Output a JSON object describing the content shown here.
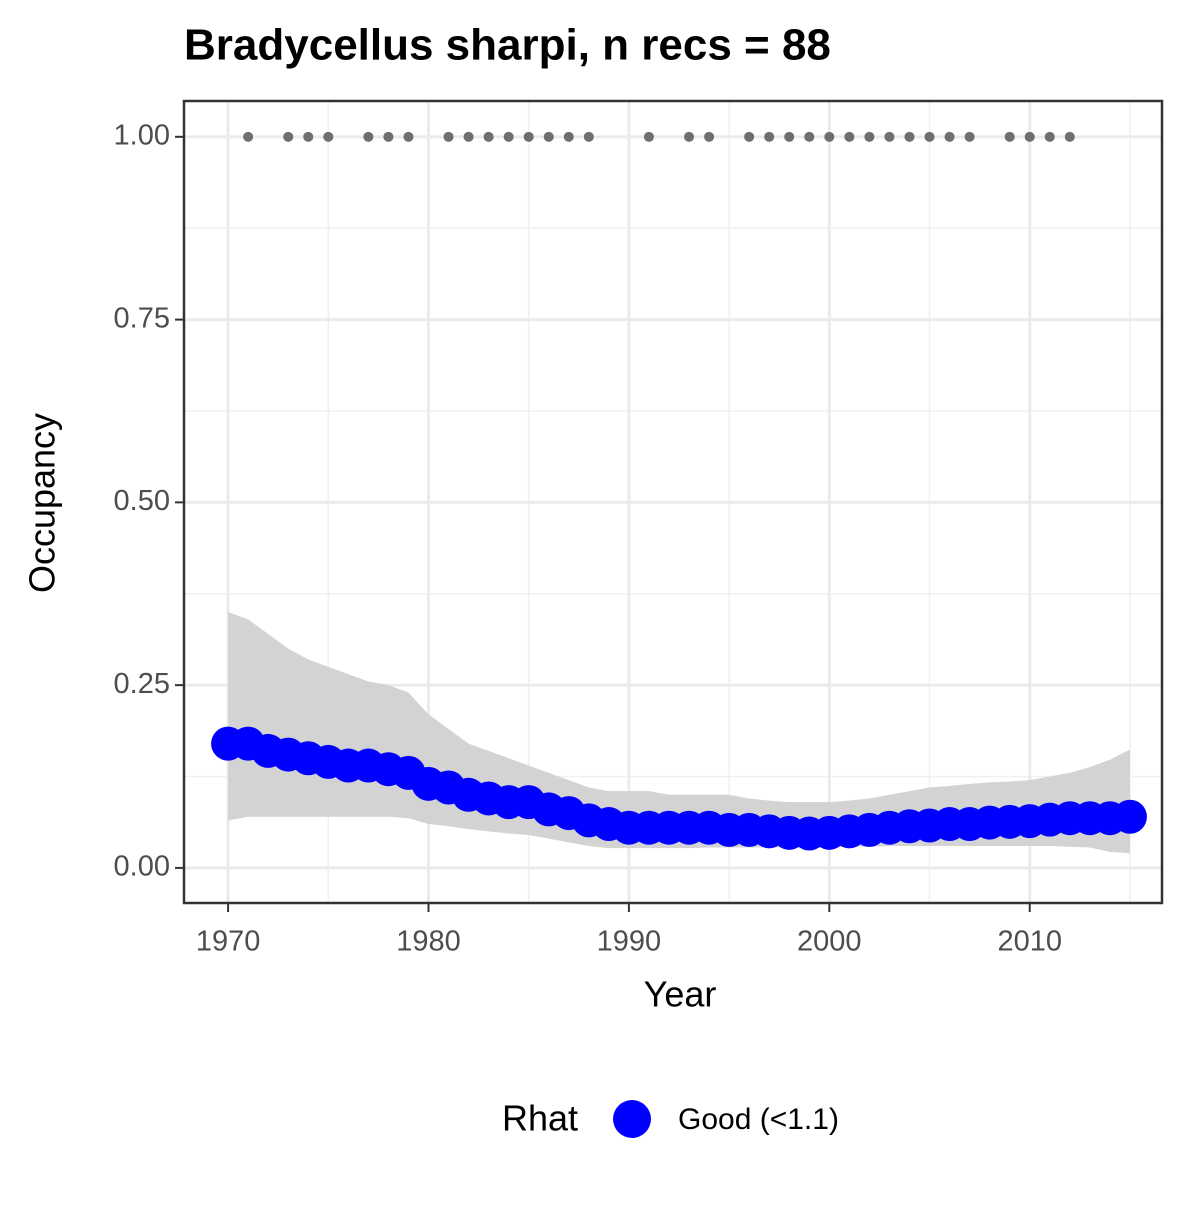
{
  "chart_data": {
    "type": "line",
    "title": "Bradycellus sharpi, n recs = 88",
    "x_label": "Year",
    "y_label": "Occupancy",
    "legend_title": "Rhat",
    "legend_position": "bottom",
    "x": [
      1970,
      1971,
      1972,
      1973,
      1974,
      1975,
      1976,
      1977,
      1978,
      1979,
      1980,
      1981,
      1982,
      1983,
      1984,
      1985,
      1986,
      1987,
      1988,
      1989,
      1990,
      1991,
      1992,
      1993,
      1994,
      1995,
      1996,
      1997,
      1998,
      1999,
      2000,
      2001,
      2002,
      2003,
      2004,
      2005,
      2006,
      2007,
      2008,
      2009,
      2010,
      2011,
      2012,
      2013,
      2014,
      2015
    ],
    "series": [
      {
        "name": "Good (<1.1)",
        "color": "#0000ff",
        "values": [
          0.17,
          0.17,
          0.16,
          0.155,
          0.15,
          0.145,
          0.14,
          0.14,
          0.135,
          0.13,
          0.115,
          0.11,
          0.1,
          0.095,
          0.09,
          0.09,
          0.08,
          0.075,
          0.065,
          0.06,
          0.055,
          0.055,
          0.055,
          0.055,
          0.055,
          0.052,
          0.052,
          0.05,
          0.048,
          0.047,
          0.048,
          0.05,
          0.052,
          0.055,
          0.057,
          0.058,
          0.06,
          0.06,
          0.062,
          0.063,
          0.064,
          0.066,
          0.068,
          0.068,
          0.068,
          0.07
        ]
      }
    ],
    "band": {
      "color": "#d3d3d3",
      "upper": [
        0.35,
        0.34,
        0.32,
        0.3,
        0.285,
        0.275,
        0.265,
        0.255,
        0.25,
        0.24,
        0.21,
        0.19,
        0.17,
        0.16,
        0.15,
        0.14,
        0.13,
        0.12,
        0.11,
        0.105,
        0.105,
        0.105,
        0.1,
        0.1,
        0.1,
        0.1,
        0.095,
        0.092,
        0.09,
        0.09,
        0.09,
        0.092,
        0.095,
        0.1,
        0.105,
        0.11,
        0.112,
        0.115,
        0.117,
        0.118,
        0.12,
        0.125,
        0.13,
        0.138,
        0.148,
        0.162
      ],
      "lower": [
        0.065,
        0.07,
        0.07,
        0.07,
        0.07,
        0.07,
        0.07,
        0.07,
        0.07,
        0.068,
        0.06,
        0.057,
        0.053,
        0.05,
        0.047,
        0.045,
        0.04,
        0.035,
        0.03,
        0.027,
        0.027,
        0.027,
        0.027,
        0.027,
        0.028,
        0.028,
        0.028,
        0.028,
        0.028,
        0.028,
        0.028,
        0.029,
        0.029,
        0.03,
        0.03,
        0.03,
        0.03,
        0.03,
        0.03,
        0.03,
        0.03,
        0.03,
        0.029,
        0.028,
        0.022,
        0.02
      ]
    },
    "records": {
      "color": "#6e6e6e",
      "x": [
        1971,
        1973,
        1974,
        1975,
        1977,
        1978,
        1979,
        1981,
        1982,
        1983,
        1984,
        1985,
        1986,
        1987,
        1988,
        1991,
        1993,
        1994,
        1996,
        1997,
        1998,
        1999,
        2000,
        2001,
        2002,
        2003,
        2004,
        2005,
        2006,
        2007,
        2009,
        2010,
        2011,
        2012
      ],
      "values": [
        1,
        1,
        1,
        1,
        1,
        1,
        1,
        1,
        1,
        1,
        1,
        1,
        1,
        1,
        1,
        1,
        1,
        1,
        1,
        1,
        1,
        1,
        1,
        1,
        1,
        1,
        1,
        1,
        1,
        1,
        1,
        1,
        1,
        1
      ]
    },
    "xlim": [
      1967.8,
      2016.6
    ],
    "ylim": [
      -0.048,
      1.049
    ],
    "xticks": [
      1970,
      1980,
      1990,
      2000,
      2010
    ],
    "yticks": [
      {
        "value": 0,
        "label": "0.00"
      },
      {
        "value": 0.25,
        "label": "0.25"
      },
      {
        "value": 0.5,
        "label": "0.50"
      },
      {
        "value": 0.75,
        "label": "0.75"
      },
      {
        "value": 1,
        "label": "1.00"
      }
    ],
    "grid": true,
    "minor_grid": true
  }
}
